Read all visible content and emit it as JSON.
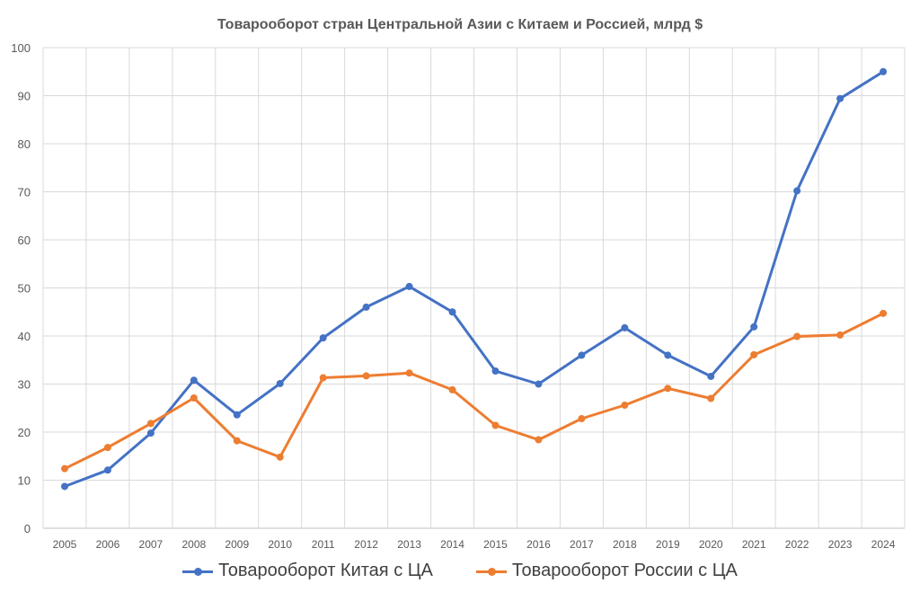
{
  "chart_data": {
    "type": "line",
    "title": "Товарооборот стран Центральной Азии с Китаем и Россией, млрд $",
    "xlabel": "",
    "ylabel": "",
    "categories": [
      "2005",
      "2006",
      "2007",
      "2008",
      "2009",
      "2010",
      "2011",
      "2012",
      "2013",
      "2014",
      "2015",
      "2016",
      "2017",
      "2018",
      "2019",
      "2020",
      "2021",
      "2022",
      "2023",
      "2024"
    ],
    "ylim": [
      0,
      100
    ],
    "yticks": [
      0,
      10,
      20,
      30,
      40,
      50,
      60,
      70,
      80,
      90,
      100
    ],
    "grid": true,
    "legend_position": "bottom",
    "series": [
      {
        "name": "Товарооборот Китая с ЦА",
        "color": "#4472c4",
        "values": [
          8.7,
          12.1,
          19.8,
          30.8,
          23.6,
          30.1,
          39.6,
          46.0,
          50.3,
          45.0,
          32.7,
          30.0,
          36.0,
          41.7,
          36.0,
          31.6,
          41.9,
          70.2,
          89.4,
          95.0
        ]
      },
      {
        "name": "Товарооборот России с ЦА",
        "color": "#ed7d31",
        "values": [
          12.4,
          16.8,
          21.8,
          27.1,
          18.2,
          14.8,
          31.3,
          31.7,
          32.3,
          28.8,
          21.4,
          18.4,
          22.8,
          25.6,
          29.1,
          27.0,
          36.1,
          39.9,
          40.2,
          44.7
        ]
      }
    ]
  }
}
